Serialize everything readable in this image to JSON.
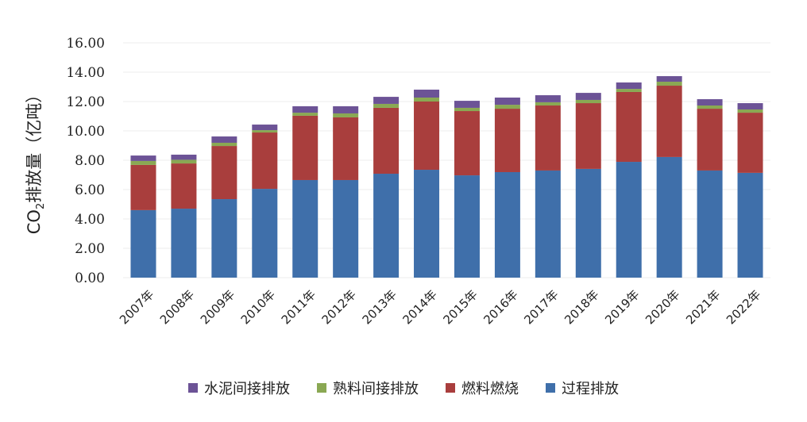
{
  "chart_data": {
    "type": "bar",
    "stacked": true,
    "title": "",
    "xlabel": "",
    "ylabel": "CO2排放量（亿吨）",
    "ylabel_parts": {
      "pre": "CO",
      "sub": "2",
      "post": "排放量（亿吨）"
    },
    "ylim": [
      0,
      16
    ],
    "yticks": [
      "0.00",
      "2.00",
      "4.00",
      "6.00",
      "8.00",
      "10.00",
      "12.00",
      "14.00",
      "16.00"
    ],
    "grid": true,
    "legend_position": "bottom",
    "categories": [
      "2007年",
      "2008年",
      "2009年",
      "2010年",
      "2011年",
      "2012年",
      "2013年",
      "2014年",
      "2015年",
      "2016年",
      "2017年",
      "2018年",
      "2019年",
      "2020年",
      "2021年",
      "2022年"
    ],
    "series": [
      {
        "name": "过程排放",
        "color": "#3f6faa",
        "values": [
          4.6,
          4.7,
          5.35,
          6.05,
          6.65,
          6.65,
          7.08,
          7.35,
          6.97,
          7.19,
          7.3,
          7.41,
          7.89,
          8.22,
          7.3,
          7.14
        ]
      },
      {
        "name": "燃料燃烧",
        "color": "#a93e3d",
        "values": [
          3.08,
          3.08,
          3.62,
          3.84,
          4.38,
          4.27,
          4.49,
          4.65,
          4.38,
          4.32,
          4.43,
          4.48,
          4.76,
          4.86,
          4.21,
          4.1
        ]
      },
      {
        "name": "熟料间接排放",
        "color": "#8aa853",
        "values": [
          0.27,
          0.25,
          0.22,
          0.16,
          0.21,
          0.27,
          0.27,
          0.27,
          0.22,
          0.27,
          0.22,
          0.22,
          0.21,
          0.27,
          0.22,
          0.22
        ]
      },
      {
        "name": "水泥间接排放",
        "color": "#6c5396",
        "values": [
          0.37,
          0.35,
          0.43,
          0.38,
          0.44,
          0.49,
          0.48,
          0.54,
          0.48,
          0.49,
          0.48,
          0.48,
          0.44,
          0.38,
          0.43,
          0.43
        ]
      }
    ],
    "legend_order": [
      "水泥间接排放",
      "熟料间接排放",
      "燃料燃烧",
      "过程排放"
    ]
  }
}
